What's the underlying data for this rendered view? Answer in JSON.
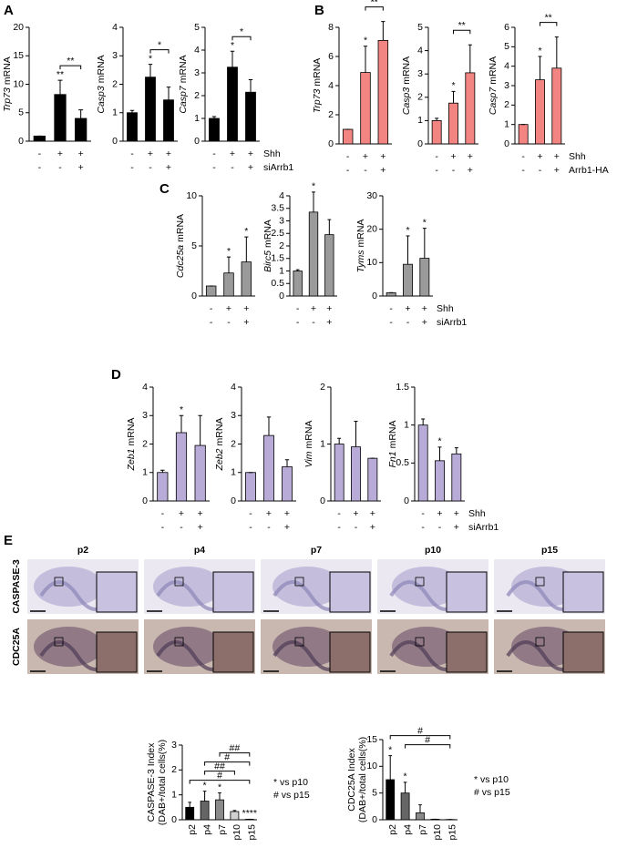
{
  "chart_data": [
    {
      "type": "bar",
      "panel": "A",
      "ylabel": {
        "gene": "Trp73",
        "text": "mRNA"
      },
      "values": [
        0.9,
        8.2,
        4.0
      ],
      "errors": [
        0,
        2.5,
        1.5
      ],
      "color": "#000000",
      "ylim": [
        0,
        20
      ],
      "yticks": [
        0,
        5,
        10,
        15,
        20
      ],
      "stars": [
        null,
        "**",
        null
      ],
      "brackets": [
        {
          "from": 1,
          "to": 2,
          "text": "**"
        }
      ],
      "conditions": [
        [
          "-",
          "+",
          "+"
        ],
        [
          "-",
          "-",
          "+"
        ]
      ]
    },
    {
      "type": "bar",
      "ylabel": {
        "gene": "Casp3",
        "text": "mRNA"
      },
      "values": [
        1.0,
        2.25,
        1.45
      ],
      "errors": [
        0.08,
        0.45,
        0.45
      ],
      "color": "#000000",
      "ylim": [
        0,
        4
      ],
      "yticks": [
        0,
        1,
        2,
        3,
        4
      ],
      "stars": [
        null,
        "*",
        null
      ],
      "brackets": [
        {
          "from": 1,
          "to": 2,
          "text": "*"
        }
      ],
      "conditions": [
        [
          "-",
          "+",
          "+"
        ],
        [
          "-",
          "-",
          "+"
        ]
      ]
    },
    {
      "type": "bar",
      "ylabel": {
        "gene": "Casp7",
        "text": "mRNA"
      },
      "values": [
        1.0,
        3.25,
        2.15
      ],
      "errors": [
        0.08,
        0.7,
        0.55
      ],
      "color": "#000000",
      "ylim": [
        0,
        5
      ],
      "yticks": [
        0,
        1,
        2,
        3,
        4,
        5
      ],
      "stars": [
        null,
        "*",
        null
      ],
      "brackets": [
        {
          "from": 1,
          "to": 2,
          "text": "*"
        }
      ],
      "conditions": [
        [
          "-",
          "+",
          "+"
        ],
        [
          "-",
          "-",
          "+"
        ]
      ],
      "condition_names": [
        "Shh",
        "siArrb1"
      ]
    },
    {
      "type": "bar",
      "panel": "B",
      "ylabel": {
        "gene": "Trp73",
        "text": "mRNA"
      },
      "values": [
        1.0,
        4.9,
        7.1
      ],
      "errors": [
        0,
        1.8,
        1.3
      ],
      "color": "#f28482",
      "ylim": [
        0,
        8
      ],
      "yticks": [
        0,
        2,
        4,
        6,
        8
      ],
      "stars": [
        null,
        "*",
        null
      ],
      "brackets": [
        {
          "from": 1,
          "to": 2,
          "text": "**"
        }
      ],
      "conditions": [
        [
          "-",
          "+",
          "+"
        ],
        [
          "-",
          "-",
          "+"
        ]
      ]
    },
    {
      "type": "bar",
      "ylabel": {
        "gene": "Casp3",
        "text": "mRNA"
      },
      "values": [
        1.0,
        1.75,
        3.05
      ],
      "errors": [
        0.1,
        0.5,
        1.2
      ],
      "color": "#f28482",
      "ylim": [
        0,
        5
      ],
      "yticks": [
        0,
        1,
        2,
        3,
        4,
        5
      ],
      "stars": [
        null,
        "*",
        null
      ],
      "brackets": [
        {
          "from": 1,
          "to": 2,
          "text": "**"
        }
      ],
      "conditions": [
        [
          "-",
          "+",
          "+"
        ],
        [
          "-",
          "-",
          "+"
        ]
      ]
    },
    {
      "type": "bar",
      "ylabel": {
        "gene": "Casp7",
        "text": "mRNA"
      },
      "values": [
        1.0,
        3.3,
        3.9
      ],
      "errors": [
        0,
        1.2,
        1.6
      ],
      "color": "#f28482",
      "ylim": [
        0,
        6
      ],
      "yticks": [
        0,
        1,
        2,
        3,
        4,
        5,
        6
      ],
      "stars": [
        null,
        "*",
        null
      ],
      "brackets": [
        {
          "from": 1,
          "to": 2,
          "text": "**"
        }
      ],
      "conditions": [
        [
          "-",
          "+",
          "+"
        ],
        [
          "-",
          "-",
          "+"
        ]
      ],
      "condition_names": [
        "Shh",
        "Arrb1-HA"
      ]
    },
    {
      "type": "bar",
      "panel": "C",
      "ylabel": {
        "gene": "Cdc25a",
        "text": "mRNA"
      },
      "values": [
        1.0,
        2.3,
        3.4
      ],
      "errors": [
        0,
        1.6,
        2.5
      ],
      "color": "#9a9a9a",
      "ylim": [
        0,
        10
      ],
      "yticks": [
        0,
        5,
        10
      ],
      "stars": [
        null,
        "*",
        "*"
      ],
      "conditions": [
        [
          "-",
          "+",
          "+"
        ],
        [
          "-",
          "-",
          "+"
        ]
      ]
    },
    {
      "type": "bar",
      "ylabel": {
        "gene": "Birc5",
        "text": "mRNA"
      },
      "values": [
        1.0,
        3.35,
        2.45
      ],
      "errors": [
        0.05,
        0.8,
        0.6
      ],
      "color": "#9a9a9a",
      "ylim": [
        0,
        4
      ],
      "yticks": [
        0,
        0.5,
        1,
        1.5,
        2,
        2.5,
        3,
        3.5,
        4
      ],
      "stars": [
        null,
        "*",
        null
      ],
      "conditions": [
        [
          "-",
          "+",
          "+"
        ],
        [
          "-",
          "-",
          "+"
        ]
      ]
    },
    {
      "type": "bar",
      "ylabel": {
        "gene": "Tyms",
        "text": "mRNA"
      },
      "values": [
        1.0,
        9.5,
        11.3
      ],
      "errors": [
        0,
        8.5,
        9
      ],
      "color": "#9a9a9a",
      "ylim": [
        0,
        30
      ],
      "yticks": [
        0,
        10,
        20,
        30
      ],
      "stars": [
        null,
        "*",
        "*"
      ],
      "conditions": [
        [
          "-",
          "+",
          "+"
        ],
        [
          "-",
          "-",
          "+"
        ]
      ],
      "condition_names": [
        "Shh",
        "siArrb1"
      ]
    },
    {
      "type": "bar",
      "panel": "D",
      "ylabel": {
        "gene": "Zeb1",
        "text": "mRNA"
      },
      "values": [
        1.0,
        2.4,
        1.95
      ],
      "errors": [
        0.08,
        0.6,
        1.05
      ],
      "color": "#b9abd8",
      "ylim": [
        0,
        4
      ],
      "yticks": [
        0,
        1,
        2,
        3,
        4
      ],
      "stars": [
        null,
        "*",
        null
      ],
      "conditions": [
        [
          "-",
          "+",
          "+"
        ],
        [
          "-",
          "-",
          "+"
        ]
      ]
    },
    {
      "type": "bar",
      "ylabel": {
        "gene": "Zeb2",
        "text": "mRNA"
      },
      "values": [
        1.0,
        2.3,
        1.2
      ],
      "errors": [
        0,
        0.65,
        0.25
      ],
      "color": "#b9abd8",
      "ylim": [
        0,
        4
      ],
      "yticks": [
        0,
        1,
        2,
        3,
        4
      ],
      "conditions": [
        [
          "-",
          "+",
          "+"
        ],
        [
          "-",
          "-",
          "+"
        ]
      ]
    },
    {
      "type": "bar",
      "ylabel": {
        "gene": "Vim",
        "text": "mRNA"
      },
      "values": [
        1.0,
        0.95,
        0.75
      ],
      "errors": [
        0.1,
        0.45,
        0
      ],
      "color": "#b9abd8",
      "ylim": [
        0,
        2
      ],
      "yticks": [
        0,
        1,
        2
      ],
      "conditions": [
        [
          "-",
          "+",
          "+"
        ],
        [
          "-",
          "-",
          "+"
        ]
      ]
    },
    {
      "type": "bar",
      "ylabel": {
        "gene": "Fn1",
        "text": "mRNA"
      },
      "values": [
        1.0,
        0.53,
        0.62
      ],
      "errors": [
        0.08,
        0.18,
        0.08
      ],
      "color": "#b9abd8",
      "ylim": [
        0,
        1.5
      ],
      "yticks": [
        0,
        0.5,
        1,
        1.5
      ],
      "stars": [
        null,
        "*",
        null
      ],
      "conditions": [
        [
          "-",
          "+",
          "+"
        ],
        [
          "-",
          "-",
          "+"
        ]
      ],
      "condition_names": [
        "Shh",
        "siArrb1"
      ]
    },
    {
      "type": "bar",
      "ylabel_lines": [
        "CASPASE-3 Index",
        "(DAB+/total cells(%)"
      ],
      "categories": [
        "p2",
        "p4",
        "p7",
        "p10",
        "p15"
      ],
      "values": [
        0.5,
        0.75,
        0.8,
        0.33,
        0.02
      ],
      "errors": [
        0.2,
        0.4,
        0.28,
        0.04,
        0
      ],
      "colors": [
        "#000000",
        "#666666",
        "#8a8a8a",
        "#d0d0d0",
        "#ffffff"
      ],
      "ylim": [
        0,
        3
      ],
      "yticks": [
        0,
        1,
        2,
        3
      ],
      "stars": [
        null,
        "*",
        "*",
        null,
        "****"
      ],
      "brackets": [
        {
          "from": 0,
          "to": 4,
          "text": "#"
        },
        {
          "from": 1,
          "to": 3,
          "text": "##"
        },
        {
          "from": 1,
          "to": 4,
          "text": "#"
        },
        {
          "from": 2,
          "to": 4,
          "text": "##"
        }
      ],
      "legend_notes": [
        "* vs p10",
        "# vs p15"
      ]
    },
    {
      "type": "bar",
      "ylabel_lines": [
        "CDC25A Index",
        "(DAB+/total cells(%)"
      ],
      "categories": [
        "p2",
        "p4",
        "p7",
        "p10",
        "p15"
      ],
      "values": [
        7.5,
        5.0,
        1.3,
        0.1,
        0.05
      ],
      "errors": [
        4.5,
        2,
        1.5,
        0,
        0
      ],
      "colors": [
        "#000000",
        "#666666",
        "#8a8a8a",
        "#d0d0d0",
        "#ffffff"
      ],
      "ylim": [
        0,
        15
      ],
      "yticks": [
        0,
        5,
        10,
        15
      ],
      "stars": [
        "*",
        "*",
        null,
        null,
        null
      ],
      "brackets": [
        {
          "from": 1,
          "to": 4,
          "text": "#"
        },
        {
          "from": 0,
          "to": 4,
          "text": "#"
        }
      ],
      "legend_notes": [
        "* vs p10",
        "# vs p15"
      ]
    }
  ],
  "histology": {
    "panel": "E",
    "columns": [
      "p2",
      "p4",
      "p7",
      "p10",
      "p15"
    ],
    "rows": [
      "CASPASE-3",
      "CDC25A"
    ]
  }
}
